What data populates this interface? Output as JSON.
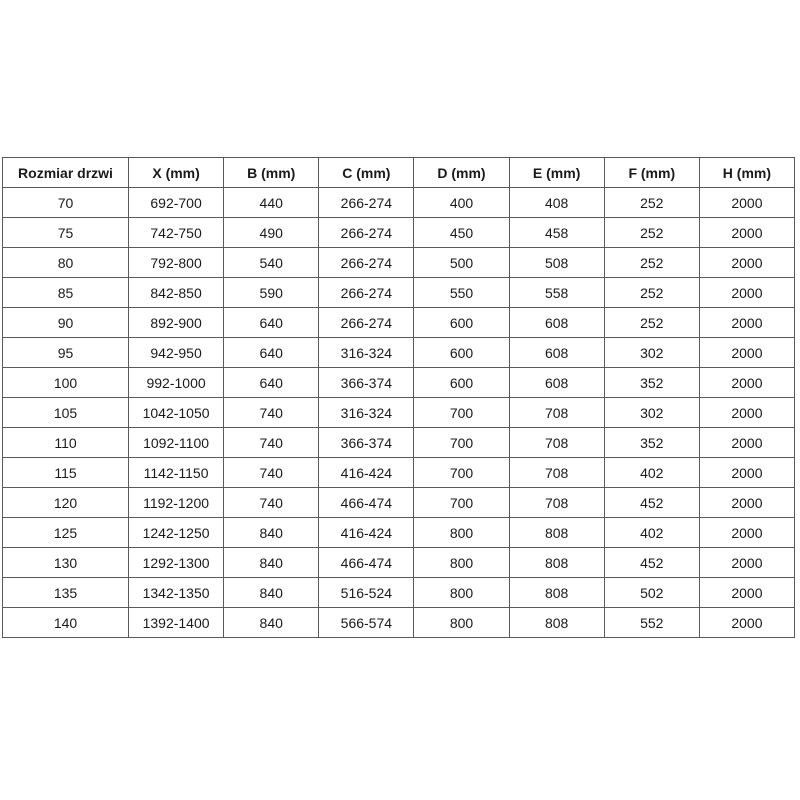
{
  "table": {
    "name": "door-size-specification-table",
    "columns": [
      "Rozmiar drzwi",
      "X (mm)",
      "B (mm)",
      "C (mm)",
      "D (mm)",
      "E (mm)",
      "F (mm)",
      "H (mm)"
    ],
    "rows": [
      [
        "70",
        "692-700",
        "440",
        "266-274",
        "400",
        "408",
        "252",
        "2000"
      ],
      [
        "75",
        "742-750",
        "490",
        "266-274",
        "450",
        "458",
        "252",
        "2000"
      ],
      [
        "80",
        "792-800",
        "540",
        "266-274",
        "500",
        "508",
        "252",
        "2000"
      ],
      [
        "85",
        "842-850",
        "590",
        "266-274",
        "550",
        "558",
        "252",
        "2000"
      ],
      [
        "90",
        "892-900",
        "640",
        "266-274",
        "600",
        "608",
        "252",
        "2000"
      ],
      [
        "95",
        "942-950",
        "640",
        "316-324",
        "600",
        "608",
        "302",
        "2000"
      ],
      [
        "100",
        "992-1000",
        "640",
        "366-374",
        "600",
        "608",
        "352",
        "2000"
      ],
      [
        "105",
        "1042-1050",
        "740",
        "316-324",
        "700",
        "708",
        "302",
        "2000"
      ],
      [
        "110",
        "1092-1100",
        "740",
        "366-374",
        "700",
        "708",
        "352",
        "2000"
      ],
      [
        "115",
        "1142-1150",
        "740",
        "416-424",
        "700",
        "708",
        "402",
        "2000"
      ],
      [
        "120",
        "1192-1200",
        "740",
        "466-474",
        "700",
        "708",
        "452",
        "2000"
      ],
      [
        "125",
        "1242-1250",
        "840",
        "416-424",
        "800",
        "808",
        "402",
        "2000"
      ],
      [
        "130",
        "1292-1300",
        "840",
        "466-474",
        "800",
        "808",
        "452",
        "2000"
      ],
      [
        "135",
        "1342-1350",
        "840",
        "516-524",
        "800",
        "808",
        "502",
        "2000"
      ],
      [
        "140",
        "1392-1400",
        "840",
        "566-574",
        "800",
        "808",
        "552",
        "2000"
      ]
    ]
  },
  "colors": {
    "border": "#595959",
    "text": "#1a1a1a",
    "background": "#ffffff"
  }
}
